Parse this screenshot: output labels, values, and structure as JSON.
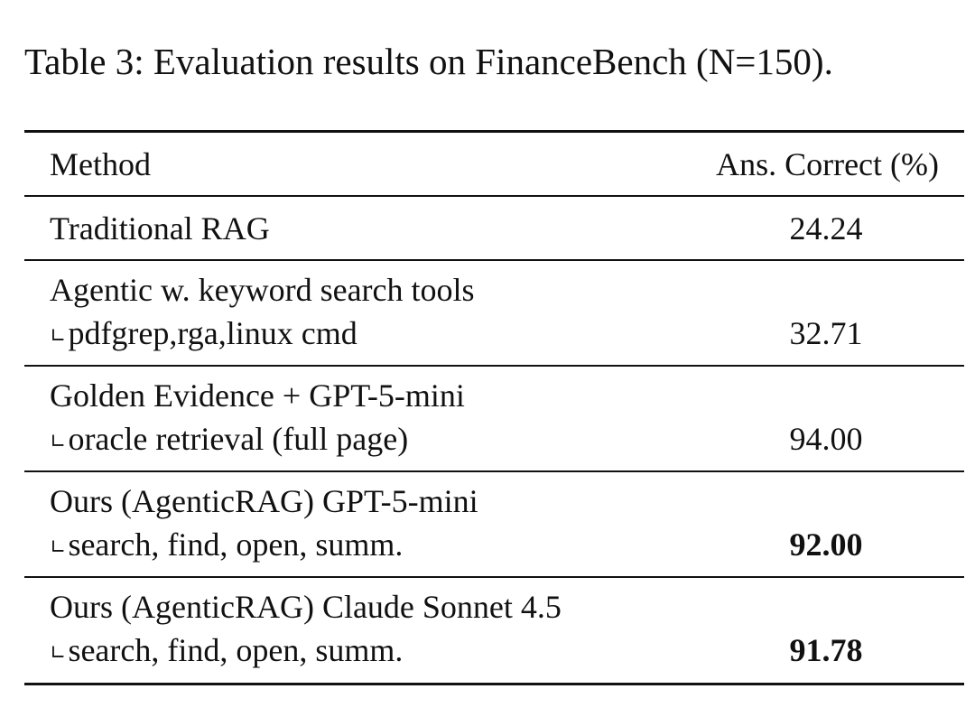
{
  "caption": "Table 3: Evaluation results on FinanceBench (N=150).",
  "table": {
    "headers": {
      "method": "Method",
      "score": "Ans. Correct (%)"
    },
    "sub_marker": "∟",
    "rows": [
      {
        "method": "Traditional RAG",
        "detail": "",
        "score": "24.24",
        "bold": false
      },
      {
        "method": "Agentic w. keyword search tools",
        "detail": "pdfgrep,rga,linux cmd",
        "score": "32.71",
        "bold": false
      },
      {
        "method": "Golden Evidence + GPT-5-mini",
        "detail": "oracle retrieval (full page)",
        "score": "94.00",
        "bold": false
      },
      {
        "method": "Ours (AgenticRAG) GPT-5-mini",
        "detail": "search, find, open, summ.",
        "score": "92.00",
        "bold": true
      },
      {
        "method": "Ours (AgenticRAG) Claude Sonnet 4.5",
        "detail": "search, find, open, summ.",
        "score": "91.78",
        "bold": true
      }
    ]
  }
}
